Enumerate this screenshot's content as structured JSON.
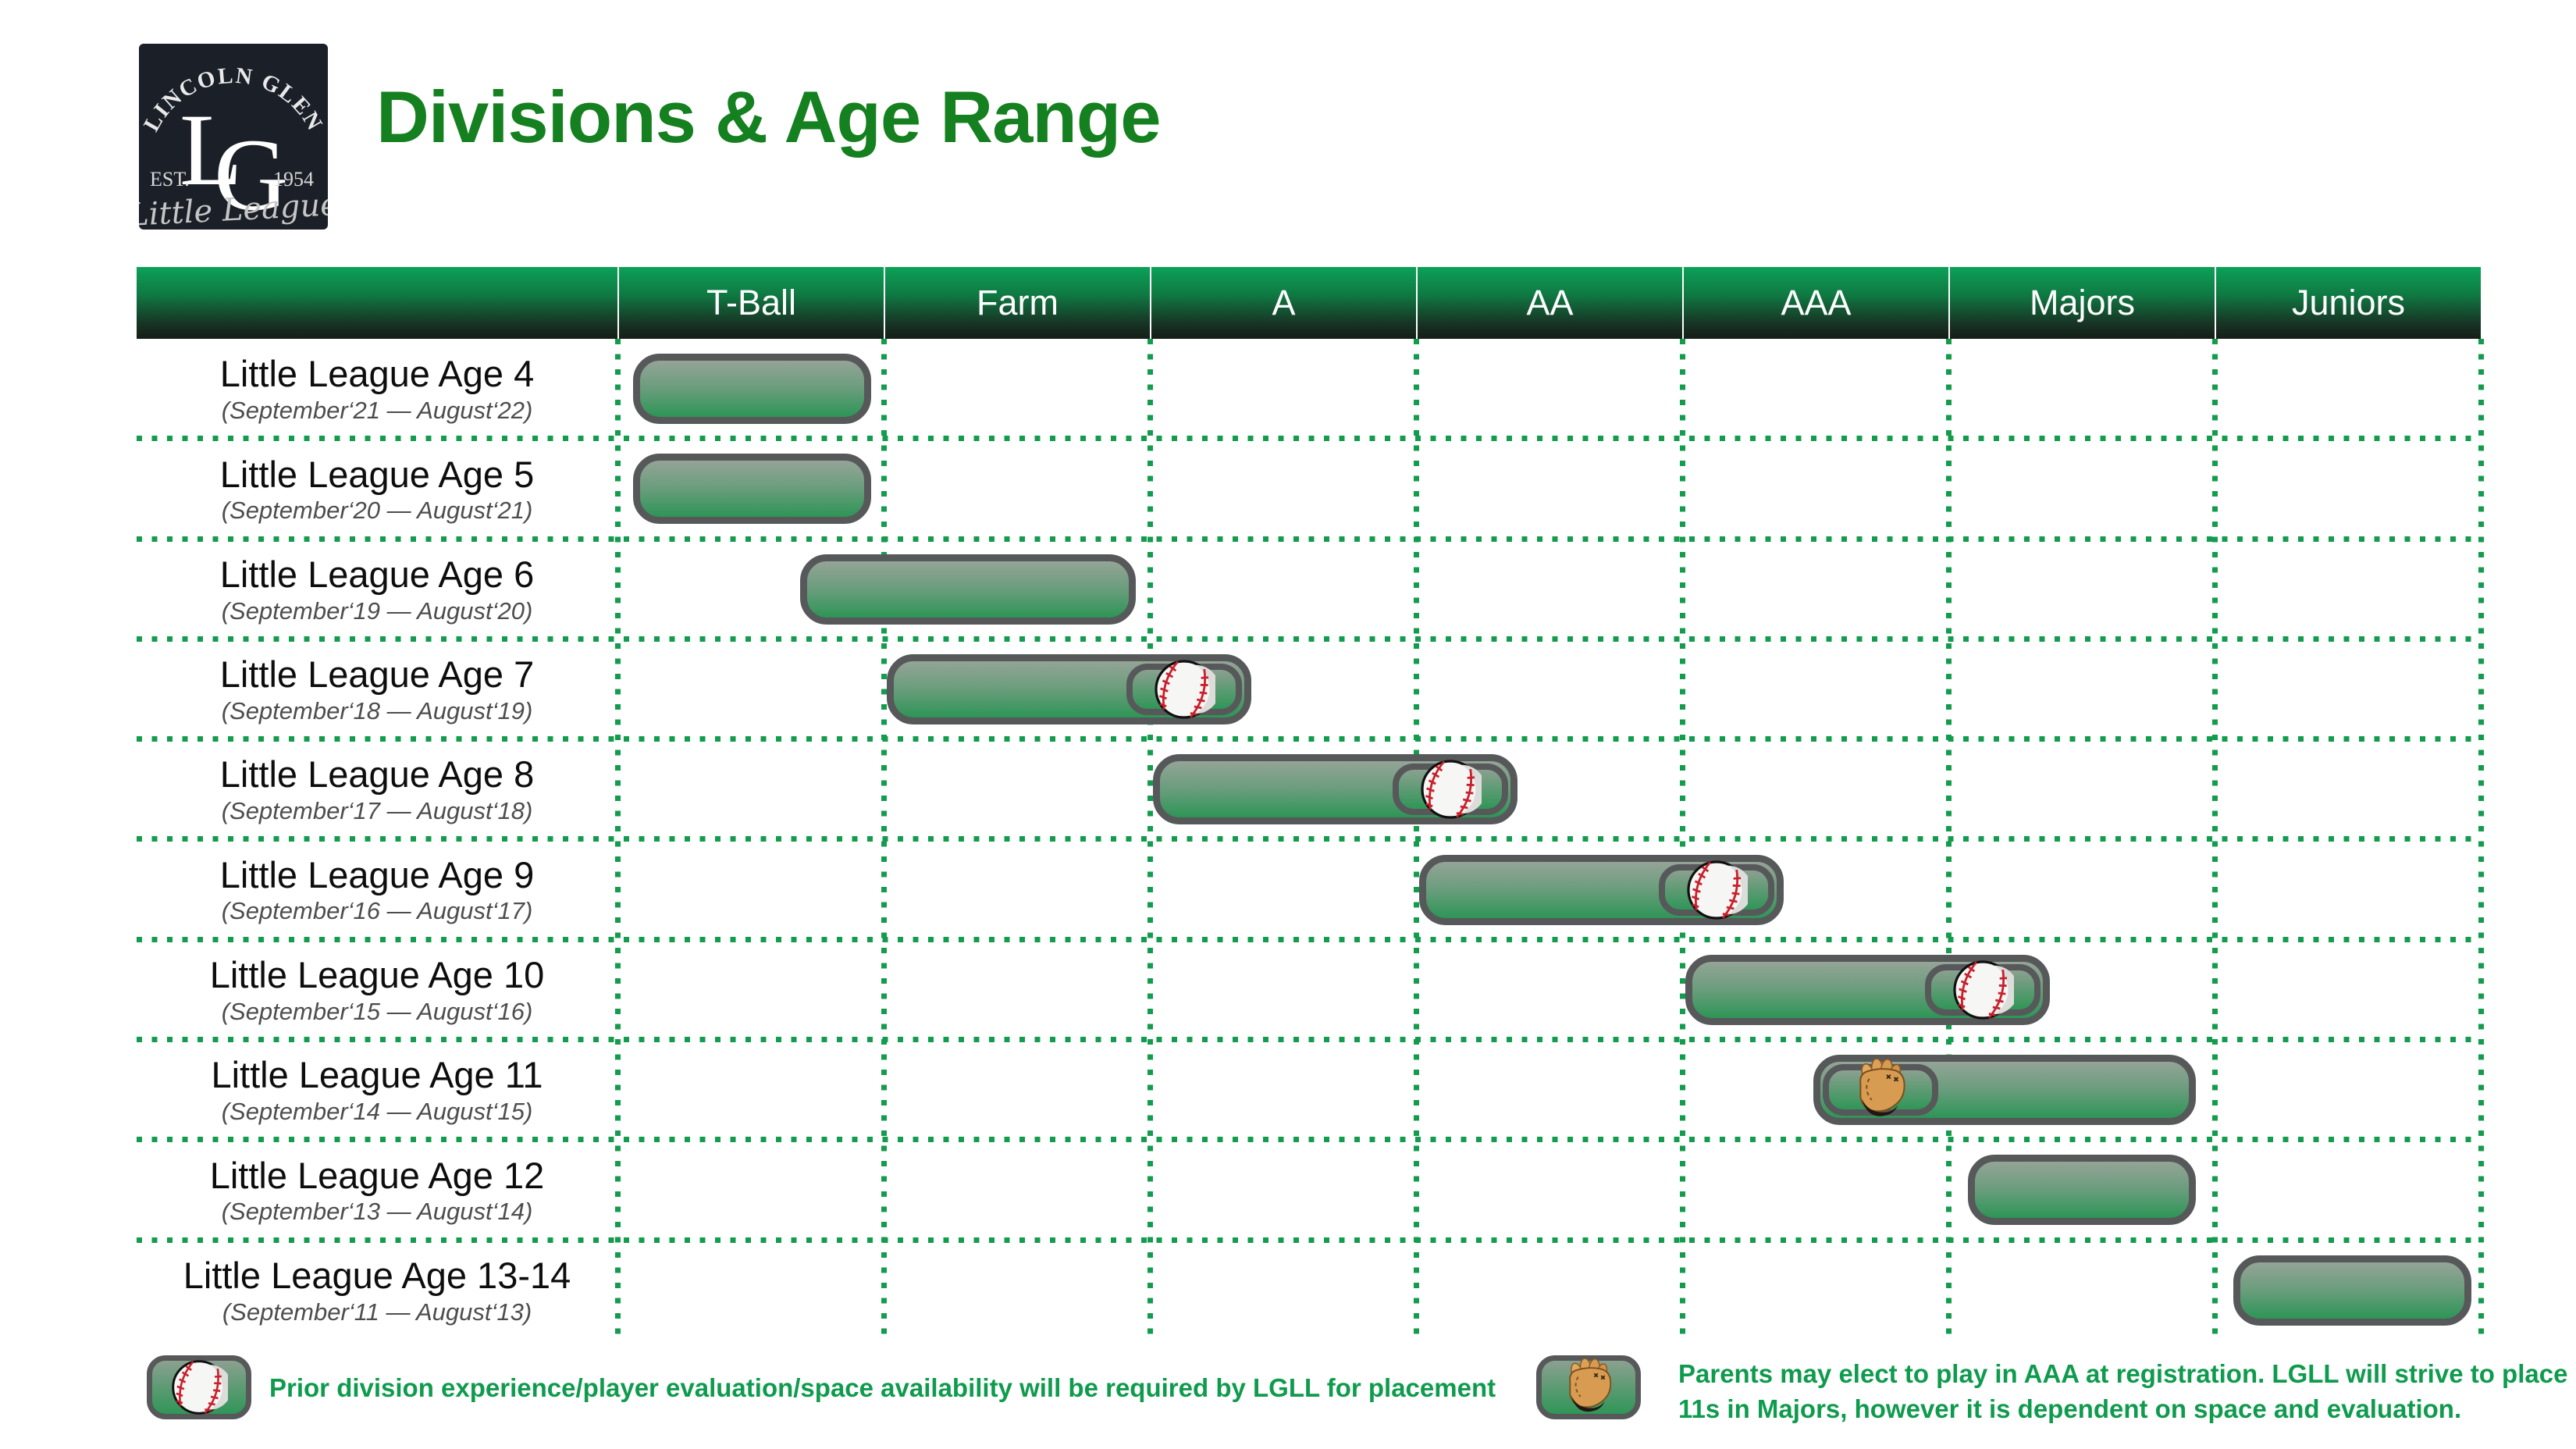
{
  "title": "Divisions & Age Range",
  "logo": {
    "arc_text": "LINCOLN GLEN",
    "mono_l": "L",
    "mono_g": "G",
    "est": "EST.",
    "year": "1954",
    "script": "Little League"
  },
  "header": {
    "divisions": [
      "T-Ball",
      "Farm",
      "A",
      "AA",
      "AAA",
      "Majors",
      "Juniors"
    ]
  },
  "rows": [
    {
      "label": "Little League Age 4",
      "range": "(September‘21 — August‘22)",
      "divisions": [
        "T-Ball"
      ],
      "bar": {
        "start": 0.058,
        "end": 0.953,
        "icon": null,
        "icon_side": null
      }
    },
    {
      "label": "Little League Age 5",
      "range": "(September‘20 — August‘21)",
      "divisions": [
        "T-Ball"
      ],
      "bar": {
        "start": 0.058,
        "end": 0.953,
        "icon": null,
        "icon_side": null
      }
    },
    {
      "label": "Little League Age 6",
      "range": "(September‘19 — August‘20)",
      "divisions": [
        "T-Ball",
        "Farm"
      ],
      "bar": {
        "start": 0.686,
        "end": 1.947,
        "icon": null,
        "icon_side": null
      }
    },
    {
      "label": "Little League Age 7",
      "range": "(September‘18 — August‘19)",
      "divisions": [
        "Farm",
        "A"
      ],
      "bar": {
        "start": 1.012,
        "end": 2.381,
        "icon": "baseball",
        "icon_side": "right"
      }
    },
    {
      "label": "Little League Age 8",
      "range": "(September‘17 — August‘18)",
      "divisions": [
        "A",
        "AA"
      ],
      "bar": {
        "start": 2.012,
        "end": 3.381,
        "icon": "baseball",
        "icon_side": "right"
      }
    },
    {
      "label": "Little League Age 9",
      "range": "(September‘16 — August‘17)",
      "divisions": [
        "AA",
        "AAA"
      ],
      "bar": {
        "start": 3.012,
        "end": 4.381,
        "icon": "baseball",
        "icon_side": "right"
      }
    },
    {
      "label": "Little League Age 10",
      "range": "(September‘15 — August‘16)",
      "divisions": [
        "AAA",
        "Majors"
      ],
      "bar": {
        "start": 4.012,
        "end": 5.381,
        "icon": "baseball",
        "icon_side": "right"
      }
    },
    {
      "label": "Little League Age 11",
      "range": "(September‘14 — August‘15)",
      "divisions": [
        "AAA",
        "Majors"
      ],
      "bar": {
        "start": 4.493,
        "end": 5.93,
        "icon": "glove",
        "icon_side": "left"
      }
    },
    {
      "label": "Little League Age 12",
      "range": "(September‘13 — August‘14)",
      "divisions": [
        "Majors"
      ],
      "bar": {
        "start": 5.073,
        "end": 5.93,
        "icon": null,
        "icon_side": null
      }
    },
    {
      "label": "Little League Age 13-14",
      "range": "(September‘11 — August‘13)",
      "divisions": [
        "Juniors"
      ],
      "bar": {
        "start": 6.07,
        "end": 6.964,
        "icon": null,
        "icon_side": null
      }
    }
  ],
  "legend": [
    {
      "icon": "baseball",
      "text": "Prior division experience/player evaluation/space availability will be required by LGLL for placement"
    },
    {
      "icon": "glove",
      "text_line1": "Parents may elect to play in AAA at registration. LGLL will strive to",
      "text_line2": "place 11s in Majors, however it is dependent on space and evaluation.",
      "text": "Parents may elect to play in AAA at registration. LGLL will strive to place 11s in Majors, however it is dependent on space and evaluation."
    }
  ],
  "colors": {
    "title_green": "#15801f",
    "legend_green": "#0f9b4d",
    "dot_green": "#149c4e",
    "bar_border_gray": "#57585a",
    "bar_green_bottom": "#2d9556",
    "bar_gray_top": "#94a497",
    "header_gradient_top": "#0ba158",
    "header_gradient_bottom": "#151d17",
    "logo_bg": "#1b2028"
  },
  "chart_data": {
    "type": "table",
    "title": "Divisions & Age Range",
    "columns": [
      "T-Ball",
      "Farm",
      "A",
      "AA",
      "AAA",
      "Majors",
      "Juniors"
    ],
    "legend_position": "bottom",
    "grid": "dotted-green",
    "rows": [
      {
        "age": "Little League Age 4",
        "birth_window": "September‘21 — August‘22",
        "divisions": [
          "T-Ball"
        ],
        "marker": null
      },
      {
        "age": "Little League Age 5",
        "birth_window": "September‘20 — August‘21",
        "divisions": [
          "T-Ball"
        ],
        "marker": null
      },
      {
        "age": "Little League Age 6",
        "birth_window": "September‘19 — August‘20",
        "divisions": [
          "T-Ball",
          "Farm"
        ],
        "marker": null
      },
      {
        "age": "Little League Age 7",
        "birth_window": "September‘18 — August‘19",
        "divisions": [
          "Farm",
          "A"
        ],
        "marker": "baseball-at-A-end"
      },
      {
        "age": "Little League Age 8",
        "birth_window": "September‘17 — August‘18",
        "divisions": [
          "A",
          "AA"
        ],
        "marker": "baseball-at-AA-end"
      },
      {
        "age": "Little League Age 9",
        "birth_window": "September‘16 — August‘17",
        "divisions": [
          "AA",
          "AAA"
        ],
        "marker": "baseball-at-AAA-end"
      },
      {
        "age": "Little League Age 10",
        "birth_window": "September‘15 — August‘16",
        "divisions": [
          "AAA",
          "Majors"
        ],
        "marker": "baseball-at-Majors-end"
      },
      {
        "age": "Little League Age 11",
        "birth_window": "September‘14 — August‘15",
        "divisions": [
          "AAA",
          "Majors"
        ],
        "marker": "glove-at-AAA-start"
      },
      {
        "age": "Little League Age 12",
        "birth_window": "September‘13 — August‘14",
        "divisions": [
          "Majors"
        ],
        "marker": null
      },
      {
        "age": "Little League Age 13-14",
        "birth_window": "September‘11 — August‘13",
        "divisions": [
          "Juniors"
        ],
        "marker": null
      }
    ]
  }
}
